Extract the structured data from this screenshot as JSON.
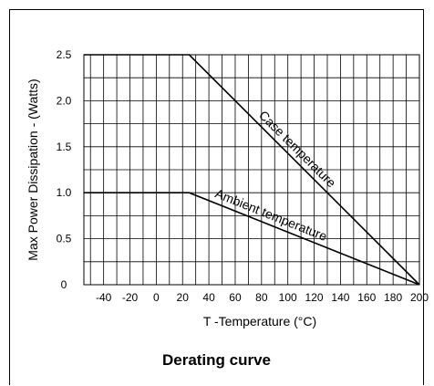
{
  "chart_data": {
    "type": "line",
    "title": "",
    "caption": "Derating curve",
    "xlabel": "T -Temperature (°C)",
    "ylabel": "Max Power Dissipation - (Watts)",
    "xlim": [
      -55,
      200
    ],
    "ylim": [
      0,
      2.5
    ],
    "x_ticks": [
      -40,
      -20,
      0,
      20,
      40,
      60,
      80,
      100,
      120,
      140,
      160,
      180,
      200
    ],
    "x_tick_labels": [
      "-40",
      "-20",
      "0",
      "20",
      "40",
      "60",
      "80",
      "100",
      "120",
      "140",
      "160",
      "180",
      "200"
    ],
    "y_ticks": [
      0,
      0.5,
      1.0,
      1.5,
      2.0,
      2.5
    ],
    "y_tick_labels": [
      "0",
      "0.5",
      "1.0",
      "1.5",
      "2.0",
      "2.5"
    ],
    "grid": true,
    "series": [
      {
        "name": "Case temperature",
        "x": [
          -55,
          25,
          200
        ],
        "y": [
          2.5,
          2.5,
          0
        ]
      },
      {
        "name": "Ambient temperature",
        "x": [
          -55,
          25,
          200
        ],
        "y": [
          1.0,
          1.0,
          0
        ]
      }
    ]
  }
}
